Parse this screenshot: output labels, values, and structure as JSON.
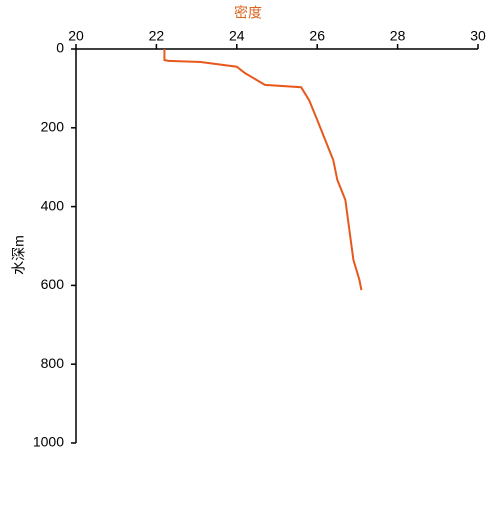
{
  "chart_data": {
    "type": "line",
    "x_label": "密度",
    "y_label": "水深m",
    "x": [
      22.2,
      22.2,
      22.3,
      23.1,
      24.0,
      24.2,
      24.7,
      25.6,
      25.8,
      26.0,
      26.2,
      26.4,
      26.5,
      26.7,
      26.8,
      26.9,
      27.05,
      27.1
    ],
    "values": [
      0,
      28,
      30,
      33,
      45,
      61,
      91,
      97,
      130,
      180,
      231,
      282,
      332,
      383,
      459,
      535,
      586,
      612
    ],
    "color": "#e8581c",
    "label_color": "#d9641e",
    "xlim": [
      20,
      30
    ],
    "xticks": [
      20,
      22,
      24,
      26,
      28,
      30
    ],
    "ylim": [
      0,
      1000
    ],
    "yticks": [
      0,
      200,
      400,
      600,
      800,
      1000
    ],
    "y_inverted": true,
    "grid": false
  }
}
